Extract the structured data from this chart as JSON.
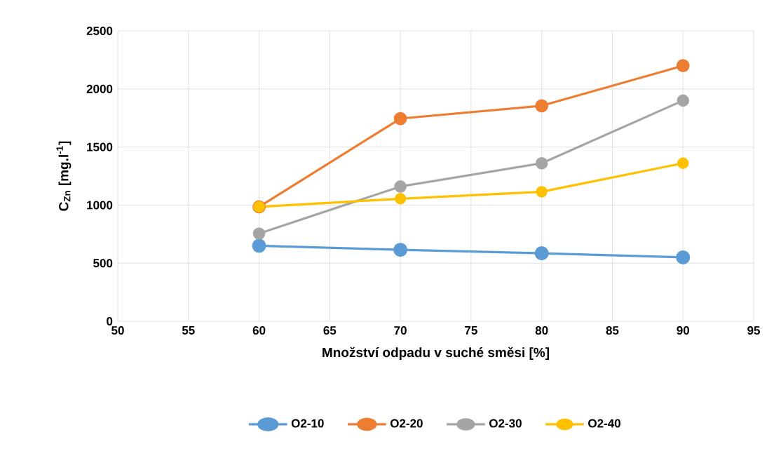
{
  "chart_data": {
    "type": "line",
    "xlabel": "Množství odpadu v suché směsi [%]",
    "ylabel": "C$_{Zn}$ [mg.l$^{-1}$]",
    "x": [
      60,
      70,
      80,
      90
    ],
    "series": [
      {
        "name": "O2-10",
        "color": "#5b9bd5",
        "values": [
          650,
          615,
          585,
          550
        ]
      },
      {
        "name": "O2-20",
        "color": "#ed7d31",
        "values": [
          985,
          1745,
          1855,
          2200
        ]
      },
      {
        "name": "O2-30",
        "color": "#a5a5a5",
        "values": [
          755,
          1160,
          1360,
          1900
        ]
      },
      {
        "name": "O2-40",
        "color": "#ffc000",
        "values": [
          985,
          1055,
          1115,
          1360
        ]
      }
    ],
    "xlim": [
      50,
      95
    ],
    "xticks": [
      50,
      55,
      60,
      65,
      70,
      75,
      80,
      85,
      90,
      95
    ],
    "ylim": [
      0,
      2500
    ],
    "yticks": [
      0,
      500,
      1000,
      1500,
      2000,
      2500
    ],
    "grid": true,
    "legend": "bottom",
    "marker": "circle",
    "line_style": "solid"
  }
}
